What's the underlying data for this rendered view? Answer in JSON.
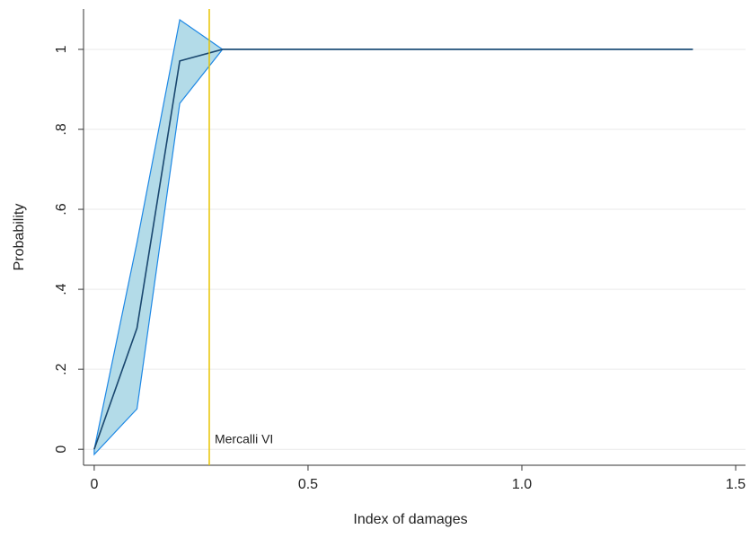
{
  "chart_data": {
    "type": "line",
    "x": [
      0,
      0.1,
      0.2,
      0.3,
      0.4,
      0.5,
      0.6,
      0.7,
      0.8,
      0.9,
      1.0,
      1.1,
      1.2,
      1.3,
      1.4
    ],
    "values": [
      0,
      0.303,
      0.971,
      1,
      1,
      1,
      1,
      1,
      1,
      1,
      1,
      1,
      1,
      1,
      1
    ],
    "ci_lower": [
      -0.013,
      0.101,
      0.865,
      1,
      1,
      1,
      1,
      1,
      1,
      1,
      1,
      1,
      1,
      1,
      1
    ],
    "ci_upper": [
      0,
      0.517,
      1.074,
      1,
      1,
      1,
      1,
      1,
      1,
      1,
      1,
      1,
      1,
      1,
      1
    ],
    "color": "#1a476f",
    "band_color": "#b3dbe8",
    "band_edge_color": "#1e88e5",
    "annotation": {
      "x": 0.269,
      "label": "Mercalli VI",
      "color": "#e8c400"
    },
    "xlabel": "Index of damages",
    "ylabel": "Probability",
    "xlim": [
      -0.025,
      1.523
    ],
    "ylim": [
      -0.04,
      1.101
    ],
    "xticks": [
      0,
      0.5,
      {
        "value": 1,
        "label": "1.0"
      },
      1.5
    ],
    "yticks": [
      0,
      {
        "value": 0.2,
        "label": ".2"
      },
      {
        "value": 0.4,
        "label": ".4"
      },
      {
        "value": 0.6,
        "label": ".6"
      },
      {
        "value": 0.8,
        "label": ".8"
      },
      1
    ],
    "grid": true
  }
}
